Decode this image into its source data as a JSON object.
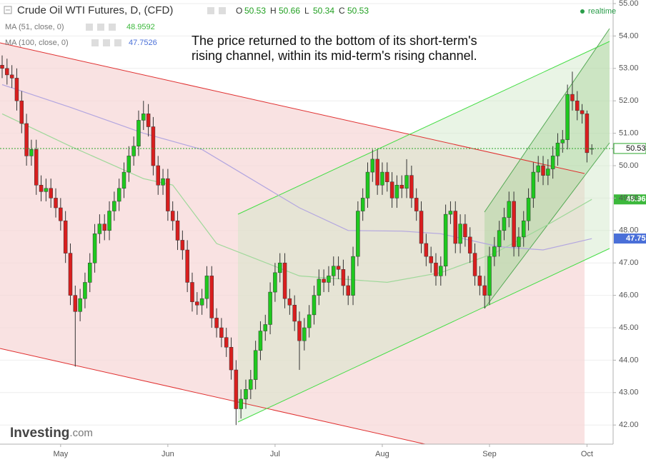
{
  "chart_data": {
    "type": "candlestick",
    "title": "Crude Oil WTI Futures, D, (CFD)",
    "ohlc_legend": [
      {
        "label": "O",
        "value": 50.53
      },
      {
        "label": "H",
        "value": 50.66
      },
      {
        "label": "L",
        "value": 50.34
      },
      {
        "label": "C",
        "value": 50.53
      }
    ],
    "status": "realtime",
    "annotation": [
      "The price returned to the bottom of its short-term's",
      "rising channel, within its mid-term's rising channel."
    ],
    "logo": "Investing",
    "logo_suffix": ".com",
    "up_color": "#1ec81e",
    "down_color": "#d91e1e",
    "grid": true,
    "ylim": [
      41.41,
      55.11
    ],
    "yticks": [
      {
        "value": 42,
        "label": "42.00"
      },
      {
        "value": 43,
        "label": "43.00"
      },
      {
        "value": 44,
        "label": "44.00"
      },
      {
        "value": 45,
        "label": "45.00"
      },
      {
        "value": 46,
        "label": "46.00"
      },
      {
        "value": 47,
        "label": "47.00"
      },
      {
        "value": 48,
        "label": "48.00"
      },
      {
        "value": 49,
        "label": "49.00"
      },
      {
        "value": 50,
        "label": "50.00"
      },
      {
        "value": 51,
        "label": "51.00"
      },
      {
        "value": 52,
        "label": "52.00"
      },
      {
        "value": 53,
        "label": "53.00"
      },
      {
        "value": 54,
        "label": "54.00"
      },
      {
        "value": 55,
        "label": "55.00"
      }
    ],
    "categories": [
      null,
      null,
      null,
      null,
      null,
      null,
      null,
      null,
      null,
      null,
      null,
      null,
      "May",
      null,
      null,
      null,
      null,
      null,
      null,
      null,
      null,
      null,
      null,
      null,
      null,
      null,
      null,
      null,
      null,
      null,
      null,
      null,
      null,
      null,
      "Jun",
      null,
      null,
      null,
      null,
      null,
      null,
      null,
      null,
      null,
      null,
      null,
      null,
      null,
      null,
      null,
      null,
      null,
      null,
      null,
      null,
      null,
      "Jul",
      null,
      null,
      null,
      null,
      null,
      null,
      null,
      null,
      null,
      null,
      null,
      null,
      null,
      null,
      null,
      null,
      null,
      null,
      null,
      null,
      null,
      "Aug",
      null,
      null,
      null,
      null,
      null,
      null,
      null,
      null,
      null,
      null,
      null,
      null,
      null,
      null,
      null,
      null,
      null,
      null,
      null,
      null,
      null,
      "Sep",
      null,
      null,
      null,
      null,
      null,
      null,
      null,
      null,
      null,
      null,
      null,
      null,
      null,
      null,
      null,
      null,
      null,
      null,
      null,
      "Oct",
      null
    ],
    "open": [
      53.1,
      53.0,
      52.8,
      52.7,
      52.0,
      51.3,
      50.3,
      50.5,
      49.4,
      49.2,
      49.3,
      49.0,
      48.7,
      48.3,
      47.3,
      46.0,
      45.5,
      45.9,
      46.4,
      47.0,
      47.9,
      48.2,
      48.0,
      48.6,
      48.9,
      49.3,
      49.8,
      50.3,
      50.6,
      51.4,
      51.6,
      51.2,
      50.0,
      49.4,
      49.6,
      48.6,
      48.3,
      47.7,
      47.4,
      46.4,
      45.8,
      45.7,
      45.9,
      46.6,
      45.3,
      45.0,
      44.7,
      44.4,
      43.7,
      42.5,
      42.8,
      43.1,
      43.4,
      44.3,
      44.9,
      45.1,
      46.1,
      46.7,
      47.0,
      45.9,
      45.7,
      45.2,
      44.6,
      45.0,
      45.4,
      46.0,
      46.5,
      46.4,
      46.6,
      46.9,
      46.8,
      46.3,
      46.0,
      47.2,
      48.6,
      49.0,
      49.8,
      50.2,
      49.4,
      49.8,
      49.5,
      49.0,
      49.4,
      49.3,
      49.7,
      49.0,
      48.6,
      47.6,
      47.2,
      47.0,
      46.6,
      46.9,
      48.5,
      48.6,
      47.6,
      48.2,
      47.8,
      47.3,
      46.6,
      46.3,
      46.0,
      47.2,
      47.5,
      48.0,
      48.4,
      48.9,
      47.5,
      47.8,
      48.3,
      49.0,
      49.8,
      50.0,
      49.7,
      49.9,
      50.3,
      50.7,
      50.8,
      52.2,
      52.0,
      51.7,
      51.6,
      50.53
    ],
    "high": [
      53.4,
      53.3,
      53.1,
      53.0,
      52.3,
      51.6,
      50.8,
      50.8,
      49.7,
      49.6,
      49.6,
      49.3,
      49.0,
      48.6,
      47.6,
      46.3,
      46.2,
      46.7,
      47.3,
      48.2,
      48.5,
      48.5,
      48.9,
      49.2,
      49.6,
      50.1,
      50.6,
      50.9,
      51.7,
      52.0,
      51.9,
      51.5,
      50.3,
      49.9,
      49.9,
      48.9,
      48.6,
      48.0,
      47.7,
      46.7,
      46.1,
      46.2,
      46.9,
      46.9,
      45.6,
      45.3,
      45.0,
      44.7,
      44.0,
      43.1,
      43.4,
      43.7,
      44.6,
      45.2,
      45.4,
      46.4,
      47.0,
      47.3,
      47.3,
      46.2,
      46.0,
      45.5,
      45.3,
      45.7,
      46.3,
      46.8,
      46.8,
      46.9,
      47.2,
      47.2,
      47.1,
      46.6,
      47.5,
      48.9,
      49.3,
      50.1,
      50.5,
      50.5,
      50.1,
      50.1,
      49.8,
      49.7,
      49.7,
      50.2,
      50.0,
      49.3,
      48.9,
      47.9,
      47.5,
      47.3,
      47.2,
      48.8,
      48.9,
      48.9,
      48.5,
      48.5,
      48.1,
      47.6,
      46.9,
      46.6,
      47.5,
      47.8,
      48.3,
      48.7,
      49.2,
      49.2,
      48.1,
      48.6,
      49.3,
      50.1,
      50.3,
      50.3,
      50.2,
      50.6,
      51.0,
      51.1,
      52.5,
      52.9,
      52.3,
      51.9,
      51.7,
      50.66
    ],
    "low": [
      52.7,
      52.5,
      52.4,
      51.7,
      51.0,
      50.0,
      50.0,
      49.1,
      48.9,
      48.9,
      48.7,
      48.4,
      48.0,
      47.0,
      45.7,
      43.8,
      45.2,
      45.6,
      46.1,
      46.7,
      47.6,
      47.7,
      47.7,
      48.3,
      48.6,
      49.0,
      49.5,
      50.0,
      50.3,
      51.1,
      50.9,
      49.7,
      49.1,
      49.1,
      48.3,
      48.0,
      47.4,
      47.1,
      46.1,
      45.5,
      45.4,
      45.4,
      45.6,
      45.0,
      44.7,
      44.4,
      44.1,
      43.4,
      42.0,
      42.2,
      42.5,
      42.8,
      43.1,
      44.0,
      44.6,
      44.8,
      45.8,
      46.4,
      45.6,
      45.4,
      44.9,
      43.7,
      44.3,
      44.7,
      45.1,
      45.7,
      46.1,
      46.1,
      46.3,
      46.5,
      46.0,
      45.7,
      45.7,
      46.9,
      48.3,
      48.7,
      49.5,
      49.1,
      49.1,
      49.2,
      48.7,
      48.7,
      49.0,
      49.0,
      48.7,
      48.3,
      47.3,
      46.9,
      46.7,
      46.3,
      46.3,
      46.6,
      48.2,
      47.3,
      47.3,
      47.5,
      47.0,
      46.3,
      46.0,
      45.6,
      45.7,
      46.9,
      47.2,
      47.7,
      48.1,
      47.2,
      47.2,
      47.5,
      48.0,
      48.7,
      49.5,
      49.4,
      49.4,
      49.6,
      50.0,
      50.4,
      50.5,
      51.7,
      51.4,
      51.3,
      50.1,
      50.34
    ],
    "close": [
      53.0,
      52.8,
      52.7,
      52.0,
      51.3,
      50.3,
      50.5,
      49.4,
      49.2,
      49.3,
      49.0,
      48.7,
      48.3,
      47.3,
      46.0,
      45.5,
      45.9,
      46.4,
      47.0,
      47.9,
      48.2,
      48.0,
      48.6,
      48.9,
      49.3,
      49.8,
      50.3,
      50.6,
      51.4,
      51.6,
      51.2,
      50.0,
      49.4,
      49.6,
      48.6,
      48.3,
      47.7,
      47.4,
      46.4,
      45.8,
      45.7,
      45.9,
      46.6,
      45.3,
      45.0,
      44.7,
      44.4,
      43.7,
      42.5,
      42.8,
      43.1,
      43.4,
      44.3,
      44.9,
      45.1,
      46.1,
      46.7,
      47.0,
      45.9,
      45.7,
      45.2,
      44.6,
      45.0,
      45.4,
      46.0,
      46.5,
      46.4,
      46.6,
      46.9,
      46.8,
      46.3,
      46.0,
      47.2,
      48.6,
      49.0,
      49.8,
      50.2,
      49.4,
      49.8,
      49.5,
      49.0,
      49.4,
      49.3,
      49.7,
      49.0,
      48.6,
      47.6,
      47.2,
      47.0,
      46.6,
      46.9,
      48.5,
      48.6,
      47.6,
      48.2,
      47.8,
      47.3,
      46.6,
      46.3,
      46.0,
      47.2,
      47.5,
      48.0,
      48.4,
      48.9,
      47.5,
      47.8,
      48.3,
      49.0,
      49.8,
      50.0,
      49.7,
      49.9,
      50.3,
      50.7,
      50.8,
      52.2,
      52.0,
      51.7,
      51.6,
      50.4,
      50.53
    ],
    "indicators": [
      {
        "name": "MA (51, close, 0)",
        "color": "#9fd89a",
        "badge_color": "#3cb83c",
        "last_value": 48.9592,
        "axis_label": "48.96",
        "x": [
          0,
          14,
          29,
          35,
          44,
          61,
          79,
          90,
          101,
          111,
          121
        ],
        "values": [
          51.6,
          50.6,
          49.6,
          49.4,
          47.6,
          46.6,
          46.4,
          46.7,
          47.3,
          48.1,
          48.96
        ]
      },
      {
        "name": "MA (100, close, 0)",
        "color": "#b3a6e0",
        "badge_color": "#4a6fd8",
        "last_value": 47.7526,
        "axis_label": "47.75",
        "x": [
          0,
          14,
          29,
          41,
          51,
          61,
          71,
          82,
          90,
          102,
          111,
          121
        ],
        "values": [
          52.5,
          51.8,
          51.0,
          50.5,
          49.6,
          48.7,
          48.0,
          47.98,
          47.9,
          47.5,
          47.4,
          47.75
        ]
      }
    ]
  }
}
